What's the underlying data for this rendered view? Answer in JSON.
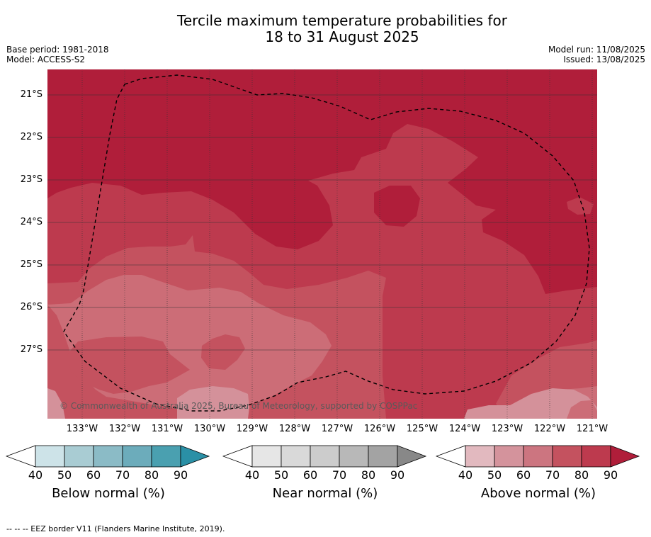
{
  "title_line1": "Tercile maximum temperature probabilities for",
  "title_line2": "18 to 31 August 2025",
  "base_period": "Base period: 1981-2018",
  "model": "Model: ACCESS-S2",
  "model_run": "Model run: 11/08/2025",
  "issued": "Issued: 13/08/2025",
  "lat_labels": [
    "21°S",
    "22°S",
    "23°S",
    "24°S",
    "25°S",
    "26°S",
    "27°S"
  ],
  "lon_labels": [
    "133°W",
    "132°W",
    "131°W",
    "130°W",
    "129°W",
    "128°W",
    "127°W",
    "126°W",
    "125°W",
    "124°W",
    "123°W",
    "122°W",
    "121°W"
  ],
  "copyright": "© Commonwealth of Australia 2025, Bureau of Meteorology, supported by COSPPac",
  "footnote": "--  --  -- EEZ border V11 (Flanders Marine Institute, 2019).",
  "colors": {
    "above_90": "#b01e3a",
    "above_80": "#bd3a4e",
    "above_70": "#c4525f",
    "above_60": "#cc6d77",
    "above_50": "#d4919a",
    "above_40": "#e2b9bf",
    "grid": "#333333"
  },
  "legends": [
    {
      "title": "Below normal (%)",
      "ticks": [
        "40",
        "50",
        "60",
        "70",
        "80",
        "90"
      ],
      "colors": [
        "#cde3e8",
        "#a9ccd3",
        "#8bbbc6",
        "#6cacbb",
        "#4aa0b0",
        "#2a90a6"
      ]
    },
    {
      "title": "Near normal (%)",
      "ticks": [
        "40",
        "50",
        "60",
        "70",
        "80",
        "90"
      ],
      "colors": [
        "#e6e6e6",
        "#d9d9d9",
        "#cccccc",
        "#b8b8b8",
        "#a3a3a3",
        "#888888"
      ]
    },
    {
      "title": "Above normal (%)",
      "ticks": [
        "40",
        "50",
        "60",
        "70",
        "80",
        "90"
      ],
      "colors": [
        "#e2b9bf",
        "#d4939c",
        "#cc7580",
        "#c4525f",
        "#bd3a4e",
        "#b01e3a"
      ]
    }
  ]
}
